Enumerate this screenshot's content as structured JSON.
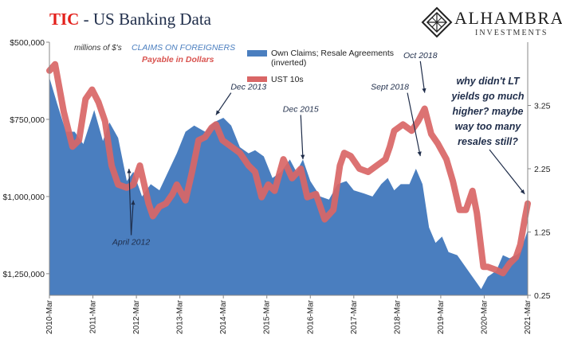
{
  "header": {
    "title_accent": "TIC",
    "title_rest": " - US Banking Data"
  },
  "logo": {
    "name": "ALHAMBRA",
    "sub": "INVESTMENTS"
  },
  "chart_data": {
    "type": "area",
    "y_left": {
      "ticks": [
        "$500,000",
        "$750,000",
        "$1,000,000",
        "$1,250,000"
      ],
      "range": [
        500000,
        1320000
      ],
      "inverted": true
    },
    "y_right": {
      "ticks": [
        "3.25",
        "2.25",
        "1.25",
        "0.25"
      ],
      "range": [
        0.25,
        4.25
      ]
    },
    "x_ticks": [
      "2010-Mar",
      "2011-Mar",
      "2012-Mar",
      "2013-Mar",
      "2014-Mar",
      "2015-Mar",
      "2016-Mar",
      "2017-Mar",
      "2018-Mar",
      "2019-Mar",
      "2020-Mar",
      "2021-Mar"
    ],
    "x_range": [
      2010.17,
      2021.17
    ],
    "units_label": "millions of $'s",
    "subtitle_blue": "CLAIMS ON FOREIGNERS",
    "subtitle_red": "Payable in Dollars",
    "series": [
      {
        "name": "Own Claims; Resale Agreements (inverted)",
        "axis": "left",
        "color": "#4a7ebf",
        "type": "area",
        "points": [
          [
            2010.17,
            615000
          ],
          [
            2010.35,
            700000
          ],
          [
            2010.55,
            790000
          ],
          [
            2010.75,
            790000
          ],
          [
            2010.95,
            830000
          ],
          [
            2011.2,
            720000
          ],
          [
            2011.4,
            820000
          ],
          [
            2011.55,
            760000
          ],
          [
            2011.75,
            810000
          ],
          [
            2011.95,
            950000
          ],
          [
            2012.1,
            920000
          ],
          [
            2012.3,
            1000000
          ],
          [
            2012.5,
            960000
          ],
          [
            2012.7,
            980000
          ],
          [
            2012.9,
            920000
          ],
          [
            2013.1,
            860000
          ],
          [
            2013.3,
            790000
          ],
          [
            2013.5,
            770000
          ],
          [
            2013.75,
            790000
          ],
          [
            2013.95,
            760000
          ],
          [
            2014.17,
            745000
          ],
          [
            2014.35,
            770000
          ],
          [
            2014.55,
            840000
          ],
          [
            2014.75,
            860000
          ],
          [
            2014.9,
            850000
          ],
          [
            2015.1,
            870000
          ],
          [
            2015.3,
            940000
          ],
          [
            2015.5,
            920000
          ],
          [
            2015.7,
            880000
          ],
          [
            2015.85,
            920000
          ],
          [
            2016.0,
            880000
          ],
          [
            2016.17,
            950000
          ],
          [
            2016.4,
            1000000
          ],
          [
            2016.6,
            1010000
          ],
          [
            2016.8,
            960000
          ],
          [
            2017.0,
            950000
          ],
          [
            2017.17,
            980000
          ],
          [
            2017.4,
            990000
          ],
          [
            2017.6,
            1000000
          ],
          [
            2017.8,
            960000
          ],
          [
            2017.95,
            940000
          ],
          [
            2018.1,
            980000
          ],
          [
            2018.25,
            960000
          ],
          [
            2018.45,
            960000
          ],
          [
            2018.6,
            910000
          ],
          [
            2018.75,
            960000
          ],
          [
            2018.9,
            1100000
          ],
          [
            2019.05,
            1150000
          ],
          [
            2019.2,
            1130000
          ],
          [
            2019.35,
            1180000
          ],
          [
            2019.55,
            1190000
          ],
          [
            2019.75,
            1230000
          ],
          [
            2019.9,
            1260000
          ],
          [
            2020.0,
            1280000
          ],
          [
            2020.1,
            1300000
          ],
          [
            2020.25,
            1260000
          ],
          [
            2020.45,
            1240000
          ],
          [
            2020.6,
            1190000
          ],
          [
            2020.75,
            1200000
          ],
          [
            2020.9,
            1190000
          ],
          [
            2021.0,
            1180000
          ],
          [
            2021.17,
            1110000
          ]
        ]
      },
      {
        "name": "UST 10s",
        "axis": "right",
        "color": "#d96666",
        "type": "line",
        "points": [
          [
            2010.17,
            3.8
          ],
          [
            2010.3,
            3.9
          ],
          [
            2010.5,
            3.15
          ],
          [
            2010.7,
            2.6
          ],
          [
            2010.85,
            2.7
          ],
          [
            2011.0,
            3.35
          ],
          [
            2011.15,
            3.5
          ],
          [
            2011.3,
            3.3
          ],
          [
            2011.45,
            3.0
          ],
          [
            2011.6,
            2.3
          ],
          [
            2011.75,
            2.0
          ],
          [
            2011.95,
            1.95
          ],
          [
            2012.1,
            2.0
          ],
          [
            2012.25,
            2.3
          ],
          [
            2012.45,
            1.7
          ],
          [
            2012.55,
            1.5
          ],
          [
            2012.7,
            1.65
          ],
          [
            2012.85,
            1.7
          ],
          [
            2013.0,
            1.85
          ],
          [
            2013.1,
            2.0
          ],
          [
            2013.3,
            1.75
          ],
          [
            2013.45,
            2.2
          ],
          [
            2013.6,
            2.7
          ],
          [
            2013.75,
            2.75
          ],
          [
            2013.9,
            2.9
          ],
          [
            2014.0,
            2.95
          ],
          [
            2014.15,
            2.7
          ],
          [
            2014.35,
            2.6
          ],
          [
            2014.55,
            2.5
          ],
          [
            2014.75,
            2.3
          ],
          [
            2014.9,
            2.2
          ],
          [
            2015.05,
            1.8
          ],
          [
            2015.2,
            2.0
          ],
          [
            2015.35,
            1.9
          ],
          [
            2015.55,
            2.4
          ],
          [
            2015.75,
            2.1
          ],
          [
            2015.95,
            2.25
          ],
          [
            2016.1,
            1.8
          ],
          [
            2016.3,
            1.85
          ],
          [
            2016.5,
            1.45
          ],
          [
            2016.7,
            1.6
          ],
          [
            2016.85,
            2.3
          ],
          [
            2016.95,
            2.5
          ],
          [
            2017.1,
            2.45
          ],
          [
            2017.3,
            2.25
          ],
          [
            2017.5,
            2.2
          ],
          [
            2017.7,
            2.3
          ],
          [
            2017.9,
            2.4
          ],
          [
            2018.0,
            2.6
          ],
          [
            2018.1,
            2.85
          ],
          [
            2018.3,
            2.95
          ],
          [
            2018.5,
            2.85
          ],
          [
            2018.65,
            3.0
          ],
          [
            2018.8,
            3.2
          ],
          [
            2018.95,
            2.8
          ],
          [
            2019.1,
            2.65
          ],
          [
            2019.3,
            2.4
          ],
          [
            2019.45,
            2.05
          ],
          [
            2019.6,
            1.6
          ],
          [
            2019.75,
            1.6
          ],
          [
            2019.9,
            1.9
          ],
          [
            2020.0,
            1.55
          ],
          [
            2020.15,
            0.7
          ],
          [
            2020.25,
            0.7
          ],
          [
            2020.45,
            0.65
          ],
          [
            2020.6,
            0.6
          ],
          [
            2020.75,
            0.75
          ],
          [
            2020.9,
            0.85
          ],
          [
            2021.0,
            1.05
          ],
          [
            2021.1,
            1.45
          ],
          [
            2021.17,
            1.7
          ]
        ]
      }
    ],
    "annotations": [
      {
        "text": "April 2012",
        "x": 2012.05,
        "y": 1.05,
        "arrows": [
          [
            2012.0,
            2.25
          ],
          [
            2012.1,
            1.75
          ]
        ]
      },
      {
        "text": "Dec 2013",
        "x": 2014.75,
        "y": 3.5,
        "arrows": [
          [
            2014.0,
            3.1
          ]
        ]
      },
      {
        "text": "Dec 2015",
        "x": 2015.95,
        "y": 3.15,
        "arrows": [
          [
            2016.0,
            2.4
          ]
        ]
      },
      {
        "text": "Sept 2018",
        "x": 2018.0,
        "y": 3.5,
        "arrows": [
          [
            2018.7,
            2.45
          ]
        ]
      },
      {
        "text": "Oct 2018",
        "x": 2018.7,
        "y": 4.0,
        "arrows": [
          [
            2018.8,
            3.45
          ]
        ]
      }
    ],
    "question": "why didn't LT yields go much higher? maybe way too many resales still?",
    "question_lines": [
      "why didn't LT",
      "yields go much",
      "higher? maybe",
      "way too many",
      "resales still?"
    ],
    "question_arrow_to": [
      2021.1,
      1.85
    ]
  }
}
